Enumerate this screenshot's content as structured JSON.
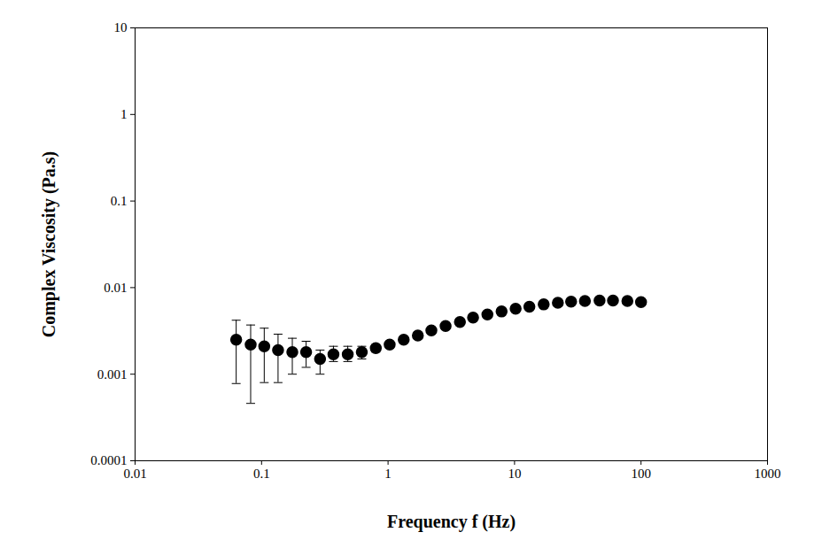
{
  "chart_data": {
    "type": "scatter",
    "x_label": "Frequency f (Hz)",
    "y_label": "Complex Viscosity (Pa.s)",
    "log": true,
    "grid": false,
    "marker": "circle",
    "color": "#000000",
    "xlim": [
      0.01,
      1000
    ],
    "ylim": [
      0.0001,
      10
    ],
    "xticks": [
      0.01,
      0.1,
      1,
      10,
      100,
      1000
    ],
    "yticks": [
      0.0001,
      0.001,
      0.01,
      0.1,
      1,
      10
    ],
    "x": [
      0.063,
      0.082,
      0.105,
      0.135,
      0.175,
      0.225,
      0.29,
      0.37,
      0.48,
      0.62,
      0.8,
      1.03,
      1.33,
      1.72,
      2.2,
      2.85,
      3.7,
      4.7,
      6.1,
      7.9,
      10.2,
      13.1,
      17,
      22,
      28,
      36,
      47,
      60,
      78,
      100
    ],
    "values": [
      0.0025,
      0.0022,
      0.0021,
      0.0019,
      0.0018,
      0.0018,
      0.0015,
      0.0017,
      0.0017,
      0.0018,
      0.002,
      0.0022,
      0.0025,
      0.0028,
      0.0032,
      0.0036,
      0.004,
      0.0045,
      0.0049,
      0.0053,
      0.0057,
      0.006,
      0.0064,
      0.0067,
      0.0069,
      0.007,
      0.0071,
      0.0071,
      0.007,
      0.0068
    ],
    "error_low": [
      0.00078,
      0.00046,
      0.0008,
      0.0008,
      0.001,
      0.0012,
      0.001,
      0.0014,
      0.0014,
      0.0015,
      0.0018,
      0.002,
      0.0023,
      0.0026,
      0.003,
      0.0034,
      0.0038,
      0.0043,
      0.0047,
      0.0051,
      0.0055,
      0.0058,
      0.0062,
      0.0065,
      0.0067,
      0.0068,
      0.0069,
      0.0069,
      0.0068,
      0.0063
    ],
    "error_high": [
      0.0042,
      0.0037,
      0.0034,
      0.0029,
      0.0026,
      0.0024,
      0.0019,
      0.0021,
      0.0021,
      0.0021,
      0.0022,
      0.0024,
      0.0027,
      0.003,
      0.0034,
      0.0038,
      0.0042,
      0.0047,
      0.0051,
      0.0055,
      0.0059,
      0.0062,
      0.0066,
      0.0069,
      0.0071,
      0.0072,
      0.0073,
      0.0073,
      0.0072,
      0.0073
    ]
  }
}
